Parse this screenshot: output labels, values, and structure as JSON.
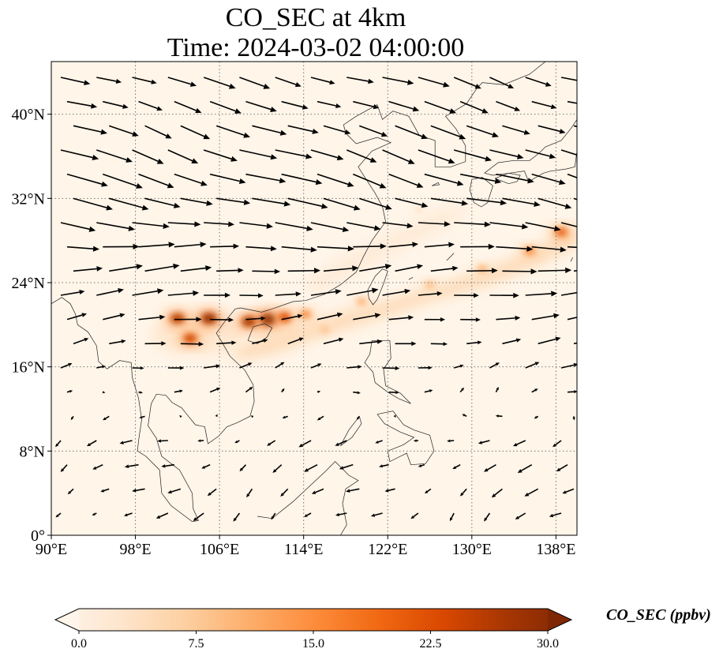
{
  "title": {
    "line1": "CO_SEC at 4km",
    "line2": "Time: 2024-03-02 04:00:00"
  },
  "map": {
    "lon_range": [
      90,
      140
    ],
    "lat_range": [
      0,
      45
    ],
    "lon_ticks": [
      {
        "value": 90,
        "label": "90°E"
      },
      {
        "value": 98,
        "label": "98°E"
      },
      {
        "value": 106,
        "label": "106°E"
      },
      {
        "value": 114,
        "label": "114°E"
      },
      {
        "value": 122,
        "label": "122°E"
      },
      {
        "value": 130,
        "label": "130°E"
      },
      {
        "value": 138,
        "label": "138°E"
      }
    ],
    "lat_ticks": [
      {
        "value": 0,
        "label": "0°"
      },
      {
        "value": 8,
        "label": "8°N"
      },
      {
        "value": 16,
        "label": "16°N"
      },
      {
        "value": 24,
        "label": "24°N"
      },
      {
        "value": 32,
        "label": "32°N"
      },
      {
        "value": 40,
        "label": "40°N"
      }
    ],
    "gridlines": "dotted",
    "colors": {
      "background": "#fff5e9",
      "coast": "#222222",
      "grid": "#777777",
      "arrow": "#000000"
    }
  },
  "colorbar": {
    "label": "CO_SEC (ppbv)",
    "min": 0,
    "max": 30,
    "extend": "both",
    "ticks": [
      {
        "value": 0,
        "label": "0.0"
      },
      {
        "value": 7.5,
        "label": "7.5"
      },
      {
        "value": 15,
        "label": "15.0"
      },
      {
        "value": 22.5,
        "label": "22.5"
      },
      {
        "value": 30,
        "label": "30.0"
      }
    ],
    "stops": [
      "#fff5eb",
      "#fee6ce",
      "#fdd0a2",
      "#fdae6b",
      "#fd8d3c",
      "#f16913",
      "#d94801",
      "#a63603",
      "#7f2704"
    ]
  },
  "concentration_features": [
    {
      "lon": 110.6,
      "lat": 20.5,
      "value": 30
    },
    {
      "lon": 108.8,
      "lat": 20.3,
      "value": 26
    },
    {
      "lon": 112.2,
      "lat": 20.7,
      "value": 22
    },
    {
      "lon": 114.2,
      "lat": 21.0,
      "value": 16
    },
    {
      "lon": 105.0,
      "lat": 20.6,
      "value": 28
    },
    {
      "lon": 102.0,
      "lat": 20.6,
      "value": 25
    },
    {
      "lon": 103.2,
      "lat": 18.7,
      "value": 23
    },
    {
      "lon": 119.5,
      "lat": 22.2,
      "value": 12
    },
    {
      "lon": 126,
      "lat": 23.8,
      "value": 11
    },
    {
      "lon": 131,
      "lat": 25.3,
      "value": 12
    },
    {
      "lon": 135.5,
      "lat": 27.0,
      "value": 16
    },
    {
      "lon": 138.5,
      "lat": 28.8,
      "value": 20
    },
    {
      "lon": 116,
      "lat": 19.5,
      "value": 10
    },
    {
      "lon": 125,
      "lat": 31.0,
      "value": 6
    }
  ],
  "wind_field": {
    "description_units": "vectors",
    "rows": [
      {
        "lat": 42,
        "u": 10,
        "v": -3
      },
      {
        "lat": 38,
        "u": 12,
        "v": -4
      },
      {
        "lat": 34,
        "u": 14,
        "v": -4
      },
      {
        "lat": 30,
        "u": 13,
        "v": -2
      },
      {
        "lat": 26,
        "u": 12,
        "v": 1
      },
      {
        "lat": 22,
        "u": 10,
        "v": 1
      },
      {
        "lat": 18,
        "u": 7,
        "v": 1
      },
      {
        "lat": 14,
        "u": 3,
        "v": 1
      },
      {
        "lat": 10,
        "u": -3,
        "v": -1
      },
      {
        "lat": 6,
        "u": -4,
        "v": -2
      },
      {
        "lat": 2,
        "u": -3,
        "v": -2
      }
    ]
  }
}
